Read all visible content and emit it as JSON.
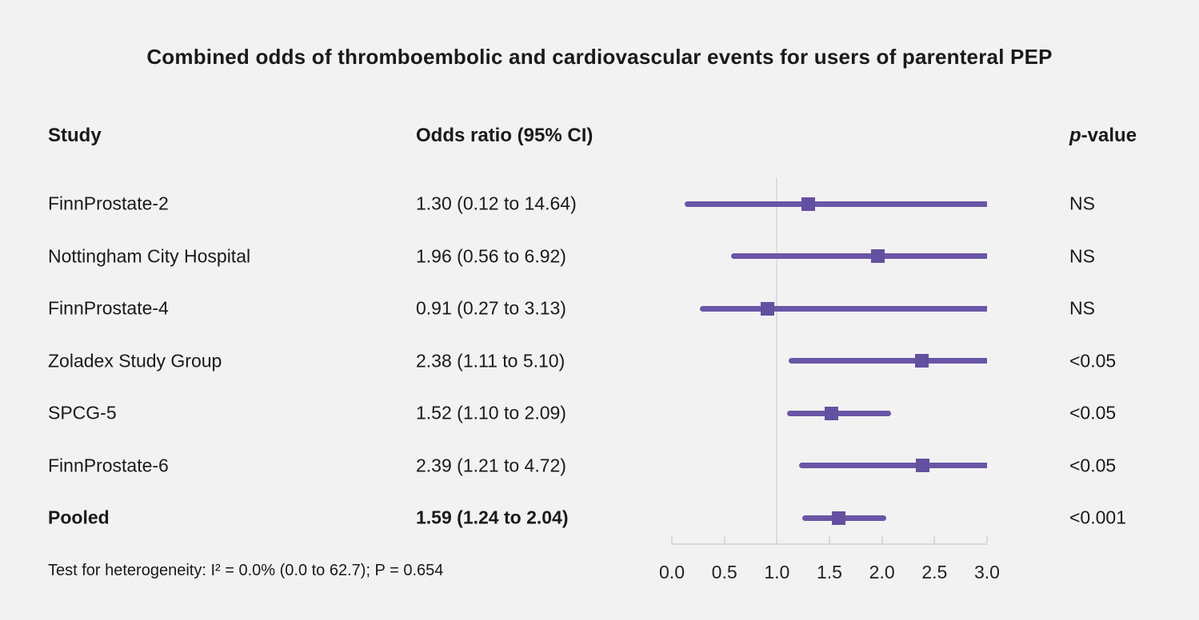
{
  "title": "Combined odds of thromboembolic and cardiovascular events for users of parenteral PEP",
  "columns": {
    "study": "Study",
    "odds_ratio": "Odds ratio (95% CI)",
    "p_italic": "p",
    "p_rest": "-value"
  },
  "footnote": "Test for heterogeneity: I² = 0.0% (0.0 to 62.7); P = 0.654",
  "colors": {
    "background": "#f2f2f2",
    "ci_line": "#6a56a6",
    "marker": "#6450a0",
    "reference_line": "#dbdee2",
    "axis": "#d5d9de"
  },
  "chart_data": {
    "type": "forest",
    "x_axis": {
      "ticks": [
        "0.0",
        "0.5",
        "1.0",
        "1.5",
        "2.0",
        "2.5",
        "3.0"
      ],
      "tick_values": [
        0.0,
        0.5,
        1.0,
        1.5,
        2.0,
        2.5,
        3.0
      ],
      "xlim": [
        0.0,
        3.0
      ],
      "reference_line": 1.0
    },
    "rows": [
      {
        "study": "FinnProstate-2",
        "or_text": "1.30 (0.12 to 14.64)",
        "est": 1.3,
        "lo": 0.12,
        "hi": 14.64,
        "p": "NS",
        "bold": false
      },
      {
        "study": "Nottingham City Hospital",
        "or_text": "1.96 (0.56 to 6.92)",
        "est": 1.96,
        "lo": 0.56,
        "hi": 6.92,
        "p": "NS",
        "bold": false
      },
      {
        "study": "FinnProstate-4",
        "or_text": "0.91 (0.27 to 3.13)",
        "est": 0.91,
        "lo": 0.27,
        "hi": 3.13,
        "p": "NS",
        "bold": false
      },
      {
        "study": "Zoladex Study Group",
        "or_text": "2.38 (1.11 to 5.10)",
        "est": 2.38,
        "lo": 1.11,
        "hi": 5.1,
        "p": "<0.05",
        "bold": false
      },
      {
        "study": "SPCG-5",
        "or_text": "1.52 (1.10 to 2.09)",
        "est": 1.52,
        "lo": 1.1,
        "hi": 2.09,
        "p": "<0.05",
        "bold": false
      },
      {
        "study": "FinnProstate-6",
        "or_text": "2.39 (1.21 to 4.72)",
        "est": 2.39,
        "lo": 1.21,
        "hi": 4.72,
        "p": "<0.05",
        "bold": false
      },
      {
        "study": "Pooled",
        "or_text": "1.59 (1.24 to 2.04)",
        "est": 1.59,
        "lo": 1.24,
        "hi": 2.04,
        "p": "<0.001",
        "bold": true
      }
    ]
  }
}
